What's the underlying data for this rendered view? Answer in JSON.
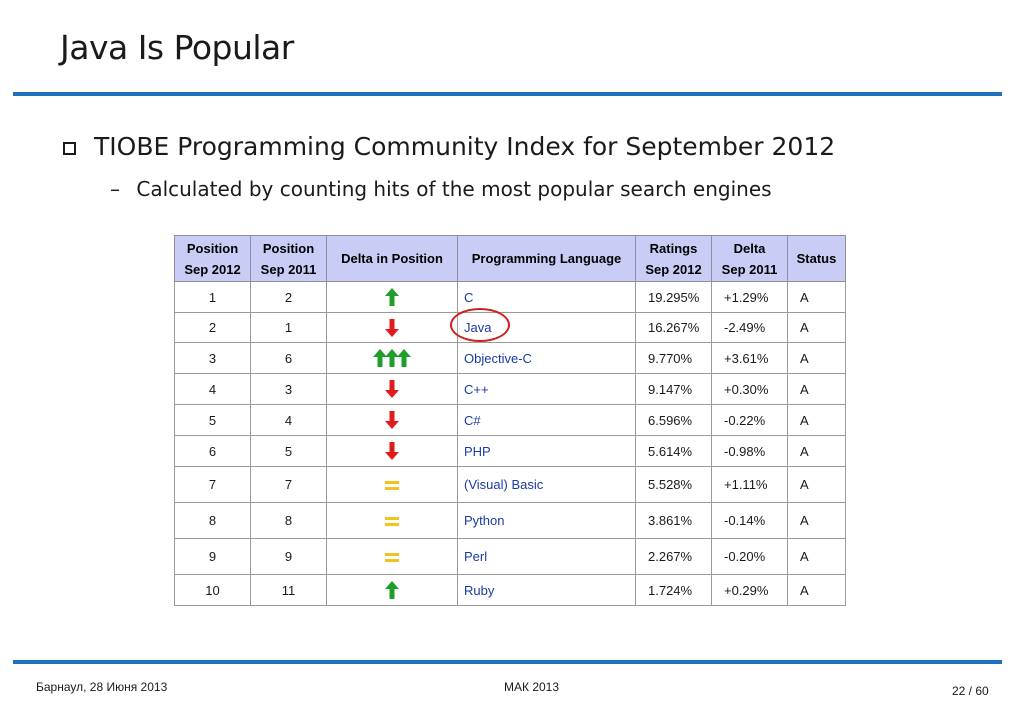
{
  "slide": {
    "title": "Java Is Popular",
    "bullet1": "TIOBE Programming Community Index for September 2012",
    "bullet2": "Calculated by counting hits of the most popular search engines"
  },
  "table": {
    "headers": [
      [
        "Position",
        "Sep 2012"
      ],
      [
        "Position",
        "Sep 2011"
      ],
      [
        "Delta in Position"
      ],
      [
        "Programming Language"
      ],
      [
        "Ratings",
        "Sep 2012"
      ],
      [
        "Delta",
        "Sep 2011"
      ],
      [
        "Status"
      ]
    ],
    "rows": [
      {
        "pos2012": "1",
        "pos2011": "2",
        "delta": "up",
        "lang": "C",
        "rating": "19.295%",
        "change": "+1.29%",
        "status": "A"
      },
      {
        "pos2012": "2",
        "pos2011": "1",
        "delta": "down",
        "lang": "Java",
        "rating": "16.267%",
        "change": "-2.49%",
        "status": "A"
      },
      {
        "pos2012": "3",
        "pos2011": "6",
        "delta": "up3",
        "lang": "Objective-C",
        "rating": "9.770%",
        "change": "+3.61%",
        "status": "A"
      },
      {
        "pos2012": "4",
        "pos2011": "3",
        "delta": "down",
        "lang": "C++",
        "rating": "9.147%",
        "change": "+0.30%",
        "status": "A"
      },
      {
        "pos2012": "5",
        "pos2011": "4",
        "delta": "down",
        "lang": "C#",
        "rating": "6.596%",
        "change": "-0.22%",
        "status": "A"
      },
      {
        "pos2012": "6",
        "pos2011": "5",
        "delta": "down",
        "lang": "PHP",
        "rating": "5.614%",
        "change": "-0.98%",
        "status": "A"
      },
      {
        "pos2012": "7",
        "pos2011": "7",
        "delta": "same",
        "lang": "(Visual) Basic",
        "rating": "5.528%",
        "change": "+1.11%",
        "status": "A"
      },
      {
        "pos2012": "8",
        "pos2011": "8",
        "delta": "same",
        "lang": "Python",
        "rating": "3.861%",
        "change": "-0.14%",
        "status": "A"
      },
      {
        "pos2012": "9",
        "pos2011": "9",
        "delta": "same",
        "lang": "Perl",
        "rating": "2.267%",
        "change": "-0.20%",
        "status": "A"
      },
      {
        "pos2012": "10",
        "pos2011": "11",
        "delta": "up",
        "lang": "Ruby",
        "rating": "1.724%",
        "change": "+0.29%",
        "status": "A"
      }
    ],
    "highlighted_language": "Java"
  },
  "colors": {
    "rule": "#1f6fbf",
    "header_bg": "#c9cdf6",
    "arrow_up": "#1e9e2a",
    "arrow_down": "#e01b1b",
    "equal": "#f2c318",
    "link": "#1a3aa8",
    "highlight_circle": "#d21f1f"
  },
  "footer": {
    "left": "Барнаул, 28 Июня 2013",
    "center": "МАК 2013",
    "page": "22 / 60"
  }
}
